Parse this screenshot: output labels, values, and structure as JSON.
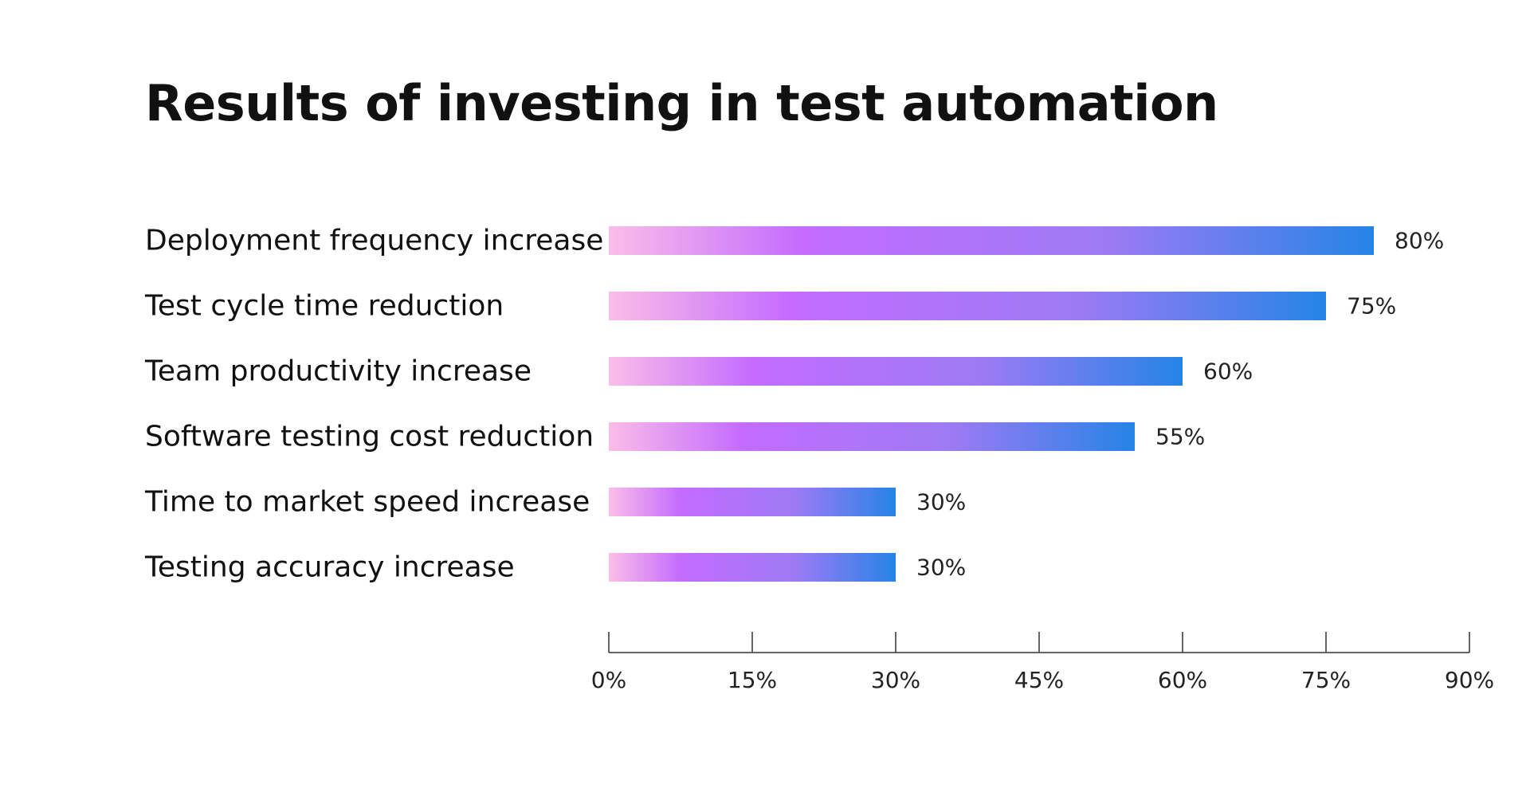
{
  "chart_data": {
    "type": "bar",
    "orientation": "horizontal",
    "title": "Results of investing in test automation",
    "categories": [
      "Deployment frequency increase",
      "Test cycle time reduction",
      "Team productivity increase",
      "Software testing cost reduction",
      "Time to market speed increase",
      "Testing accuracy increase"
    ],
    "values": [
      80,
      75,
      60,
      55,
      30,
      30
    ],
    "value_labels": [
      "80%",
      "75%",
      "60%",
      "55%",
      "30%",
      "30%"
    ],
    "xlim": [
      0,
      90
    ],
    "xticks": [
      0,
      15,
      30,
      45,
      60,
      75,
      90
    ],
    "xtick_labels": [
      "0%",
      "15%",
      "30%",
      "45%",
      "60%",
      "75%",
      "90%"
    ],
    "grid": false,
    "legend": "none",
    "bar_gradient": [
      "#fbbde8",
      "#c46cff",
      "#9d7af5",
      "#2584e6"
    ]
  }
}
